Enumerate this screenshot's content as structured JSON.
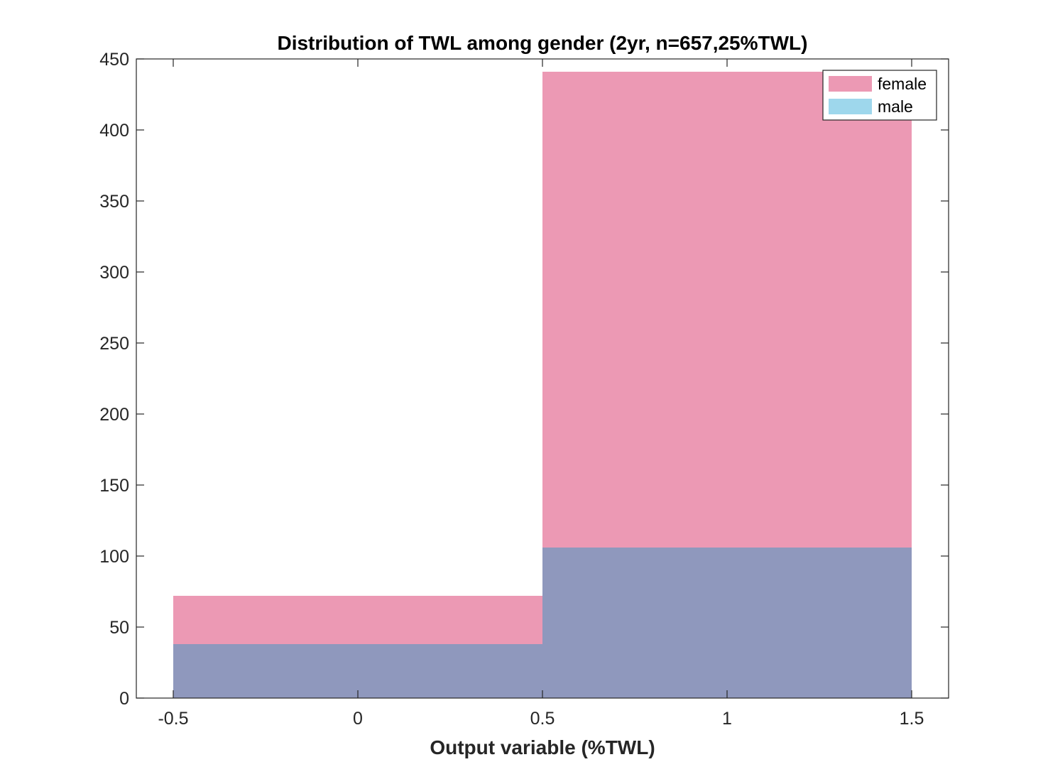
{
  "chart_data": {
    "type": "histogram",
    "title": "Distribution of TWL among gender (2yr, n=657,25%TWL)",
    "xlabel": "Output variable (%TWL)",
    "ylabel": "",
    "xlim": [
      -0.6,
      1.6
    ],
    "ylim": [
      0,
      450
    ],
    "xticks": [
      -0.5,
      0,
      0.5,
      1,
      1.5
    ],
    "xtick_labels": [
      "-0.5",
      "0",
      "0.5",
      "1",
      "1.5"
    ],
    "yticks": [
      0,
      50,
      100,
      150,
      200,
      250,
      300,
      350,
      400,
      450
    ],
    "ytick_labels": [
      "0",
      "50",
      "100",
      "150",
      "200",
      "250",
      "300",
      "350",
      "400",
      "450"
    ],
    "bin_edges": [
      -0.5,
      0.5,
      1.5
    ],
    "series": [
      {
        "name": "female",
        "values": [
          72,
          441
        ],
        "color": "#ec99b4"
      },
      {
        "name": "male",
        "values": [
          38,
          106
        ],
        "color": "#9ed7ec"
      }
    ],
    "overlap_color": "#8f98bd",
    "legend": {
      "placement": "top-right"
    },
    "grid": false
  }
}
